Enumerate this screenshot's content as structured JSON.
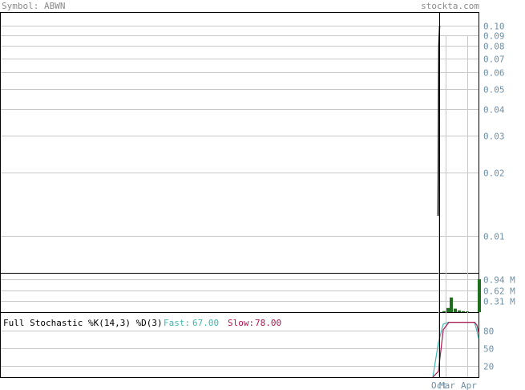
{
  "header": {
    "symbol_label": "Symbol: ABWN",
    "site": "stockta.com"
  },
  "colors": {
    "frame": "#000000",
    "grid": "#c8c8c8",
    "tick_text": "#6e8fa6",
    "header_text": "#8a8a8a",
    "volume_bar": "#1f6f1f",
    "fast_line": "#40b8b0",
    "slow_line": "#b0154f",
    "price_line": "#000000"
  },
  "chart_data": [
    {
      "type": "line",
      "title": "",
      "scale": "log",
      "y_ticks": [
        0.1,
        0.09,
        0.08,
        0.07,
        0.06,
        0.05,
        0.04,
        0.03,
        0.02,
        0.01
      ],
      "y_tick_labels": [
        "0.10",
        "0.09",
        "0.08",
        "0.07",
        "0.06",
        "0.05",
        "0.04",
        "0.03",
        "0.02",
        "0.01"
      ],
      "ylim": [
        0.0067,
        0.115
      ],
      "x_tick_labels": [
        "Oct",
        "Mar",
        "Apr"
      ],
      "series": [
        {
          "values": [
            0.0125,
            0.08,
            0.1
          ]
        }
      ]
    },
    {
      "type": "bar",
      "y_tick_labels": [
        "0.94 M",
        "0.62 M",
        "0.31 M"
      ],
      "y_ticks": [
        0.94,
        0.62,
        0.31
      ],
      "ylim": [
        0,
        1.1
      ],
      "values": [
        0.03,
        0.12,
        0.42,
        0.1,
        0.05,
        0.03,
        0.02,
        0.94
      ]
    },
    {
      "type": "line",
      "title": "Full Stochastic %K(14,3) %D(3)",
      "fast_label": "Fast:",
      "fast_value": "67.00",
      "slow_label": "Slow:",
      "slow_value": "78.00",
      "y_tick_labels": [
        "80",
        "50",
        "20"
      ],
      "y_ticks": [
        80,
        50,
        20
      ],
      "ylim": [
        0,
        100
      ],
      "series": [
        {
          "values": [
            0,
            60,
            92,
            95,
            95,
            95,
            95,
            95,
            80,
            67
          ]
        },
        {
          "values": [
            0,
            10,
            82,
            95,
            95,
            95,
            95,
            95,
            90,
            78
          ]
        }
      ]
    }
  ]
}
